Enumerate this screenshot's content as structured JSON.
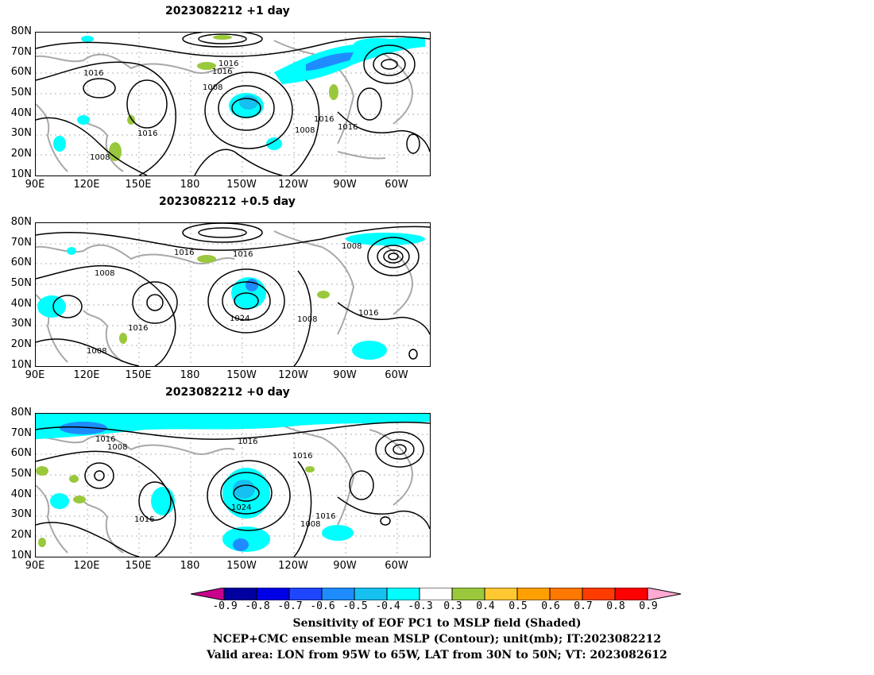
{
  "panels": [
    {
      "title": "2023082212  +1 day",
      "contour_labels": [
        "1016",
        "1016",
        "1016",
        "1008",
        "1016",
        "1016",
        "1008",
        "1016",
        "1016",
        "1008"
      ]
    },
    {
      "title": "2023082212  +0.5 day",
      "contour_labels": [
        "1016",
        "1016",
        "1008",
        "1008",
        "1016",
        "1024",
        "1008",
        "1016",
        "1008"
      ]
    },
    {
      "title": "2023082212  +0 day",
      "contour_labels": [
        "1016",
        "1008",
        "1016",
        "1016",
        "1016",
        "1024",
        "1008",
        "1016"
      ]
    }
  ],
  "lat_ticks": [
    "80N",
    "70N",
    "60N",
    "50N",
    "40N",
    "30N",
    "20N",
    "10N"
  ],
  "lon_ticks": [
    "90E",
    "120E",
    "150E",
    "180",
    "150W",
    "120W",
    "90W",
    "60W"
  ],
  "colorbar": {
    "labels": [
      "-0.9",
      "-0.8",
      "-0.7",
      "-0.6",
      "-0.5",
      "-0.4",
      "-0.3",
      "0.3",
      "0.4",
      "0.5",
      "0.6",
      "0.7",
      "0.8",
      "0.9"
    ],
    "colors": [
      "#c8008c",
      "#0000a0",
      "#0000e6",
      "#1e46ff",
      "#1e8cff",
      "#16c0f0",
      "#00ffff",
      "#ffffff",
      "#9ac83c",
      "#ffc832",
      "#ffa000",
      "#ff7800",
      "#ff3c00",
      "#ff0000",
      "#ffaad2"
    ]
  },
  "caption": {
    "line1": "Sensitivity of EOF PC1 to MSLP field (Shaded)",
    "line2": "NCEP+CMC ensemble mean MSLP (Contour); unit(mb); IT:2023082212",
    "line3": "Valid area: LON from 95W to 65W, LAT from 30N to 50N; VT: 2023082612"
  }
}
